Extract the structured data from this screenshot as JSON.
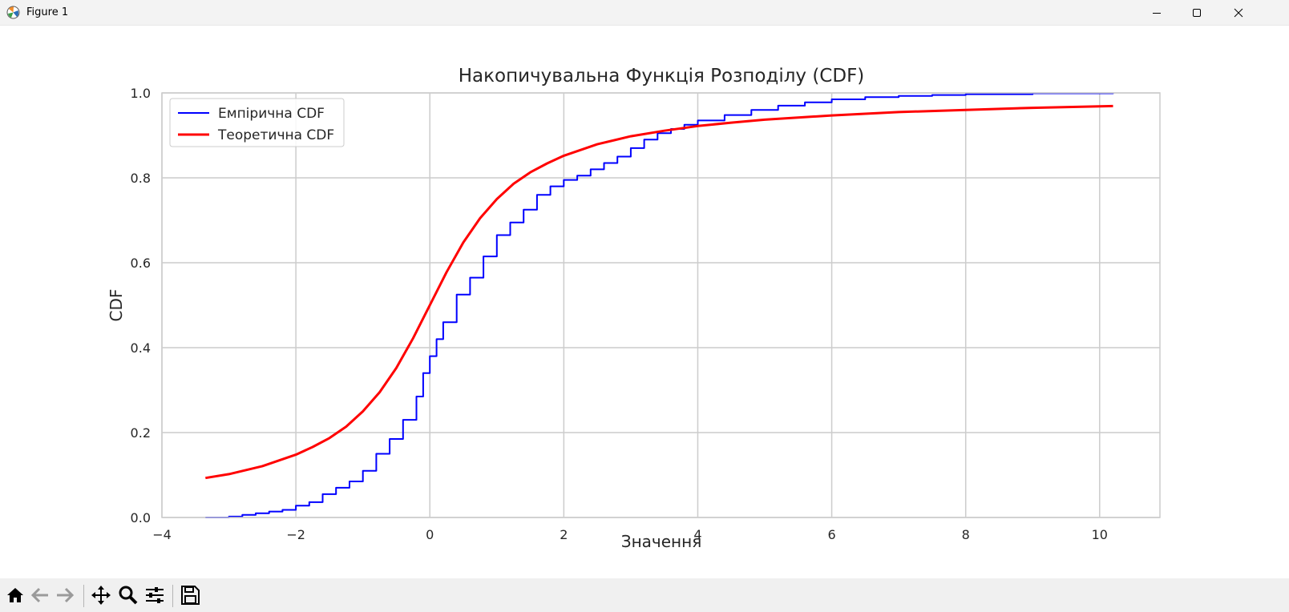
{
  "window": {
    "title": "Figure 1"
  },
  "toolbar": {
    "buttons": [
      {
        "icon": "home-icon"
      },
      {
        "icon": "back-arrow-icon"
      },
      {
        "icon": "forward-arrow-icon"
      },
      {
        "icon": "pan-icon"
      },
      {
        "icon": "zoom-icon"
      },
      {
        "icon": "configure-subplots-icon"
      },
      {
        "icon": "save-icon"
      }
    ]
  },
  "colors": {
    "empirical": "#0000ff",
    "theoretical": "#ff0000",
    "grid": "#cccccc",
    "text": "#262626"
  },
  "chart_data": {
    "type": "line",
    "title": "Накопичувальна Функція Розподілу (CDF)",
    "xlabel": "Значення",
    "ylabel": "CDF",
    "xlim": [
      -4,
      10.9
    ],
    "ylim": [
      0,
      1
    ],
    "xticks": [
      -4,
      -2,
      0,
      2,
      4,
      6,
      8,
      10
    ],
    "xtick_labels": [
      "−4",
      "−2",
      "0",
      "2",
      "4",
      "6",
      "8",
      "10"
    ],
    "yticks": [
      0.0,
      0.2,
      0.4,
      0.6,
      0.8,
      1.0
    ],
    "ytick_labels": [
      "0.0",
      "0.2",
      "0.4",
      "0.6",
      "0.8",
      "1.0"
    ],
    "grid": true,
    "legend_position": "top-left",
    "series": [
      {
        "name": "Емпірична CDF",
        "color": "#0000ff",
        "step": true,
        "x": [
          -3.35,
          -3.0,
          -2.8,
          -2.6,
          -2.4,
          -2.2,
          -2.0,
          -1.8,
          -1.6,
          -1.4,
          -1.2,
          -1.0,
          -0.8,
          -0.6,
          -0.4,
          -0.2,
          -0.1,
          0.0,
          0.1,
          0.2,
          0.4,
          0.6,
          0.8,
          1.0,
          1.2,
          1.4,
          1.6,
          1.8,
          2.0,
          2.2,
          2.4,
          2.6,
          2.8,
          3.0,
          3.2,
          3.4,
          3.6,
          3.8,
          4.0,
          4.4,
          4.8,
          5.2,
          5.6,
          6.0,
          6.5,
          7.0,
          7.5,
          8.0,
          9.0,
          10.2
        ],
        "y": [
          0.0,
          0.002,
          0.006,
          0.01,
          0.014,
          0.018,
          0.028,
          0.036,
          0.055,
          0.07,
          0.085,
          0.11,
          0.15,
          0.185,
          0.23,
          0.285,
          0.34,
          0.38,
          0.42,
          0.46,
          0.525,
          0.565,
          0.615,
          0.665,
          0.695,
          0.725,
          0.76,
          0.78,
          0.795,
          0.805,
          0.82,
          0.835,
          0.85,
          0.87,
          0.89,
          0.905,
          0.915,
          0.925,
          0.935,
          0.948,
          0.96,
          0.97,
          0.978,
          0.985,
          0.99,
          0.993,
          0.995,
          0.997,
          0.999,
          1.0
        ]
      },
      {
        "name": "Теоретична CDF",
        "color": "#ff0000",
        "x": [
          -3.35,
          -3.0,
          -2.5,
          -2.0,
          -1.75,
          -1.5,
          -1.25,
          -1.0,
          -0.75,
          -0.5,
          -0.25,
          0.0,
          0.25,
          0.5,
          0.75,
          1.0,
          1.25,
          1.5,
          1.75,
          2.0,
          2.5,
          3.0,
          3.5,
          4.0,
          4.5,
          5.0,
          6.0,
          7.0,
          8.0,
          9.0,
          10.2
        ],
        "y": [
          0.093,
          0.102,
          0.121,
          0.148,
          0.166,
          0.187,
          0.214,
          0.25,
          0.295,
          0.352,
          0.422,
          0.5,
          0.578,
          0.648,
          0.705,
          0.75,
          0.786,
          0.813,
          0.834,
          0.852,
          0.879,
          0.898,
          0.911,
          0.922,
          0.93,
          0.937,
          0.947,
          0.955,
          0.96,
          0.965,
          0.969
        ]
      }
    ]
  }
}
